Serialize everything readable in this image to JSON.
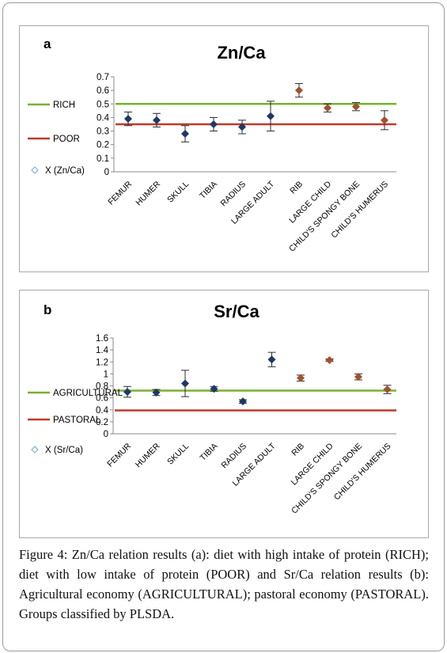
{
  "caption": "Figure 4: Zn/Ca relation results (a): diet with high intake of protein (RICH); diet with low intake of protein (POOR) and Sr/Ca relation results (b): Agricultural economy (AGRICULTURAL); pastoral economy (PASTORAL). Groups classified by PLSDA.",
  "colors": {
    "marker_adult": "#1f3864",
    "marker_child": "#a0522d",
    "line_green": "#7ab030",
    "line_red": "#c0392b",
    "legend_marker": "#6fa8dc",
    "axis": "#888888"
  },
  "chart_data": [
    {
      "type": "scatter",
      "panel_label": "a",
      "title": "Zn/Ca",
      "categories": [
        "FEMUR",
        "HUMER",
        "SKULL",
        "TIBIA",
        "RADIUS",
        "LARGE ADULT",
        "RIB",
        "LARGE CHILD",
        "CHILD'S SPONGY BONE",
        "CHILD'S HUMERUS"
      ],
      "yticks": [
        "0.7",
        "0.6",
        "0.5",
        "0.4",
        "0.3",
        "0.2",
        "0.1",
        "0"
      ],
      "ylim": [
        0,
        0.7
      ],
      "series": [
        {
          "name": "X (Zn/Ca)",
          "values": [
            0.39,
            0.38,
            0.28,
            0.35,
            0.33,
            0.41,
            0.6,
            0.47,
            0.48,
            0.38
          ],
          "errors": [
            0.05,
            0.05,
            0.06,
            0.05,
            0.05,
            0.11,
            0.05,
            0.03,
            0.03,
            0.07
          ],
          "marker_colors": [
            "adult",
            "adult",
            "adult",
            "adult",
            "adult",
            "adult",
            "child",
            "child",
            "child",
            "child"
          ]
        }
      ],
      "reference_lines": [
        {
          "name": "RICH",
          "y": 0.5,
          "color": "green"
        },
        {
          "name": "POOR",
          "y": 0.35,
          "color": "red"
        }
      ],
      "legend": [
        "RICH",
        "POOR",
        "X (Zn/Ca)"
      ],
      "legend_position": "left",
      "grid": false
    },
    {
      "type": "scatter",
      "panel_label": "b",
      "title": "Sr/Ca",
      "categories": [
        "FEMUR",
        "HUMER",
        "SKULL",
        "TIBIA",
        "RADIUS",
        "LARGE ADULT",
        "RIB",
        "LARGE CHILD",
        "CHILD'S SPONGY BONE",
        "CHILD'S HUMERUS"
      ],
      "yticks": [
        "1.6",
        "1.4",
        "1.2",
        "1",
        "0.8",
        "0.6",
        "0.4",
        "0.2",
        "0"
      ],
      "ylim": [
        0,
        1.6
      ],
      "series": [
        {
          "name": "X (Sr/Ca)",
          "values": [
            0.7,
            0.69,
            0.84,
            0.75,
            0.54,
            1.24,
            0.93,
            1.23,
            0.95,
            0.74
          ],
          "errors": [
            0.09,
            0.05,
            0.22,
            0.04,
            0.03,
            0.12,
            0.05,
            0.02,
            0.05,
            0.07
          ],
          "marker_colors": [
            "adult",
            "adult",
            "adult",
            "adult",
            "adult",
            "adult",
            "child",
            "child",
            "child",
            "child"
          ]
        }
      ],
      "reference_lines": [
        {
          "name": "AGRICULTURAL",
          "y": 0.72,
          "color": "green"
        },
        {
          "name": "PASTORAL",
          "y": 0.39,
          "color": "red"
        }
      ],
      "legend": [
        "AGRICULTURAL",
        "PASTORAL",
        "X (Sr/Ca)"
      ],
      "legend_position": "left",
      "grid": false
    }
  ]
}
